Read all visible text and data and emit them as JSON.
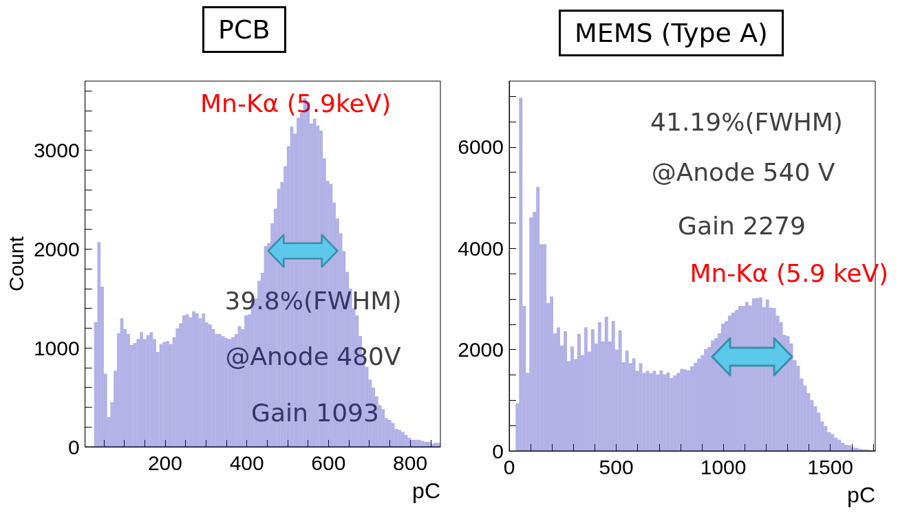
{
  "chart_data": [
    {
      "type": "histogram",
      "title": "PCB",
      "xlabel": "pC",
      "ylabel": "Count",
      "color": "#2222bb",
      "grid": false,
      "annotations": [
        {
          "text": "Mn-Kα (5.9keV)",
          "x": 550,
          "y": 3530
        },
        "39.8%(FWHM)",
        "@Anode 480V",
        "Gain 1093"
      ],
      "xlim": [
        4,
        874
      ],
      "ylim": [
        0,
        3700
      ],
      "xticks": [
        {
          "value": 50,
          "label": null
        },
        {
          "value": 100,
          "label": null
        },
        {
          "value": 150,
          "label": null
        },
        200,
        {
          "value": 250,
          "label": null
        },
        {
          "value": 300,
          "label": null
        },
        {
          "value": 350,
          "label": null
        },
        400,
        {
          "value": 450,
          "label": null
        },
        {
          "value": 500,
          "label": null
        },
        {
          "value": 550,
          "label": null
        },
        600,
        {
          "value": 650,
          "label": null
        },
        {
          "value": 700,
          "label": null
        },
        {
          "value": 750,
          "label": null
        },
        800,
        {
          "value": 850,
          "label": null
        }
      ],
      "yticks": [
        0,
        {
          "value": 200,
          "label": null
        },
        {
          "value": 400,
          "label": null
        },
        {
          "value": 600,
          "label": null
        },
        {
          "value": 800,
          "label": null
        },
        1000,
        {
          "value": 1200,
          "label": null
        },
        {
          "value": 1400,
          "label": null
        },
        {
          "value": 1600,
          "label": null
        },
        {
          "value": 1800,
          "label": null
        },
        2000,
        {
          "value": 2200,
          "label": null
        },
        {
          "value": 2400,
          "label": null
        },
        {
          "value": 2600,
          "label": null
        },
        {
          "value": 2800,
          "label": null
        },
        3000,
        {
          "value": 3200,
          "label": null
        },
        {
          "value": 3400,
          "label": null
        },
        {
          "value": 3600,
          "label": null
        }
      ],
      "bins": [
        26,
        34,
        42,
        50,
        58,
        66,
        74,
        82,
        90,
        98,
        106,
        114,
        122,
        130,
        138,
        146,
        154,
        162,
        170,
        178,
        186,
        194,
        202,
        210,
        218,
        226,
        234,
        242,
        250,
        258,
        266,
        274,
        282,
        290,
        298,
        306,
        314,
        322,
        330,
        338,
        346,
        354,
        362,
        370,
        378,
        386,
        394,
        402,
        410,
        418,
        426,
        434,
        442,
        450,
        458,
        466,
        474,
        482,
        490,
        498,
        506,
        514,
        522,
        530,
        538,
        546,
        554,
        562,
        570,
        578,
        586,
        594,
        602,
        610,
        618,
        626,
        634,
        642,
        650,
        658,
        666,
        674,
        682,
        690,
        698,
        706,
        714,
        722,
        730,
        738,
        746,
        754,
        762,
        770,
        778,
        786,
        794,
        802,
        810,
        818,
        826,
        834,
        842,
        850,
        858,
        866,
        874
      ],
      "values": [
        1260,
        2070,
        1620,
        740,
        300,
        450,
        770,
        1150,
        1300,
        1190,
        1140,
        1030,
        1050,
        1090,
        1160,
        1090,
        1130,
        1160,
        1090,
        960,
        1040,
        1060,
        1070,
        1040,
        1110,
        1200,
        1250,
        1330,
        1340,
        1310,
        1370,
        1350,
        1300,
        1350,
        1260,
        1240,
        1190,
        1140,
        1140,
        1120,
        1100,
        1090,
        1110,
        1140,
        1220,
        1190,
        1330,
        1340,
        1470,
        1500,
        1680,
        1760,
        2030,
        2060,
        2260,
        2410,
        2610,
        2680,
        2840,
        3040,
        3240,
        3170,
        3330,
        3380,
        3530,
        3480,
        3270,
        3320,
        3250,
        3200,
        2920,
        2690,
        2660,
        2470,
        2310,
        2160,
        1980,
        1770,
        1600,
        1400,
        1330,
        1120,
        920,
        810,
        680,
        600,
        510,
        420,
        380,
        290,
        270,
        240,
        180,
        170,
        150,
        120,
        90,
        70,
        70,
        70,
        60,
        50,
        50,
        30,
        40,
        40
      ]
    },
    {
      "type": "histogram",
      "title": "MEMS (Type A)",
      "xlabel": "pC",
      "color": "#2222bb",
      "grid": false,
      "annotations": [
        "41.19%(FWHM)",
        "@Anode 540 V",
        "Gain 2279",
        {
          "text": "Mn-Kα (5.9 keV)",
          "x": 1150,
          "y": 3030
        }
      ],
      "xlim": [
        0,
        1710
      ],
      "ylim": [
        0,
        7300
      ],
      "xticks": [
        0,
        {
          "value": 100,
          "label": null
        },
        {
          "value": 200,
          "label": null
        },
        {
          "value": 300,
          "label": null
        },
        {
          "value": 400,
          "label": null
        },
        500,
        {
          "value": 600,
          "label": null
        },
        {
          "value": 700,
          "label": null
        },
        {
          "value": 800,
          "label": null
        },
        {
          "value": 900,
          "label": null
        },
        1000,
        {
          "value": 1100,
          "label": null
        },
        {
          "value": 1200,
          "label": null
        },
        {
          "value": 1300,
          "label": null
        },
        {
          "value": 1400,
          "label": null
        },
        1500,
        {
          "value": 1600,
          "label": null
        },
        {
          "value": 1700,
          "label": null
        }
      ],
      "yticks": [
        0,
        {
          "value": 500,
          "label": null
        },
        {
          "value": 1000,
          "label": null
        },
        {
          "value": 1500,
          "label": null
        },
        2000,
        {
          "value": 2500,
          "label": null
        },
        {
          "value": 3000,
          "label": null
        },
        {
          "value": 3500,
          "label": null
        },
        4000,
        {
          "value": 4500,
          "label": null
        },
        {
          "value": 5000,
          "label": null
        },
        {
          "value": 5500,
          "label": null
        },
        6000,
        {
          "value": 6500,
          "label": null
        },
        {
          "value": 7000,
          "label": null
        }
      ],
      "bins": [
        30,
        46,
        62,
        78,
        94,
        110,
        126,
        142,
        158,
        174,
        190,
        206,
        222,
        238,
        254,
        270,
        286,
        302,
        318,
        334,
        350,
        366,
        382,
        398,
        414,
        430,
        446,
        462,
        478,
        494,
        510,
        526,
        542,
        558,
        574,
        590,
        606,
        622,
        638,
        654,
        670,
        686,
        702,
        718,
        734,
        750,
        766,
        782,
        798,
        814,
        830,
        846,
        862,
        878,
        894,
        910,
        926,
        942,
        958,
        974,
        990,
        1006,
        1022,
        1038,
        1054,
        1070,
        1086,
        1102,
        1118,
        1134,
        1150,
        1166,
        1182,
        1198,
        1214,
        1230,
        1246,
        1262,
        1278,
        1294,
        1310,
        1326,
        1342,
        1358,
        1374,
        1390,
        1406,
        1422,
        1438,
        1454,
        1470,
        1486,
        1502,
        1518,
        1534,
        1550,
        1566,
        1582,
        1598,
        1614,
        1630,
        1646,
        1662,
        1678,
        1694,
        1710
      ],
      "values": [
        940,
        6970,
        2860,
        1540,
        4610,
        4720,
        5210,
        4080,
        4080,
        2920,
        3050,
        2320,
        2440,
        2080,
        2360,
        1770,
        2060,
        1810,
        2310,
        1890,
        2440,
        1960,
        2400,
        2120,
        2540,
        2160,
        2650,
        2160,
        2560,
        2000,
        2380,
        1750,
        1980,
        1730,
        1830,
        1580,
        1730,
        1540,
        1580,
        1530,
        1580,
        1510,
        1590,
        1510,
        1550,
        1440,
        1490,
        1540,
        1620,
        1610,
        1590,
        1670,
        1740,
        1820,
        1890,
        2010,
        2050,
        2180,
        2230,
        2320,
        2510,
        2560,
        2670,
        2730,
        2780,
        2860,
        2860,
        2940,
        2870,
        3010,
        3020,
        3030,
        2840,
        2990,
        2830,
        2820,
        2670,
        2540,
        2290,
        2270,
        2120,
        1790,
        1680,
        1430,
        1290,
        1140,
        1000,
        880,
        760,
        580,
        490,
        370,
        330,
        260,
        220,
        160,
        120,
        110,
        70,
        60,
        40,
        30,
        30,
        20,
        10
      ]
    }
  ]
}
